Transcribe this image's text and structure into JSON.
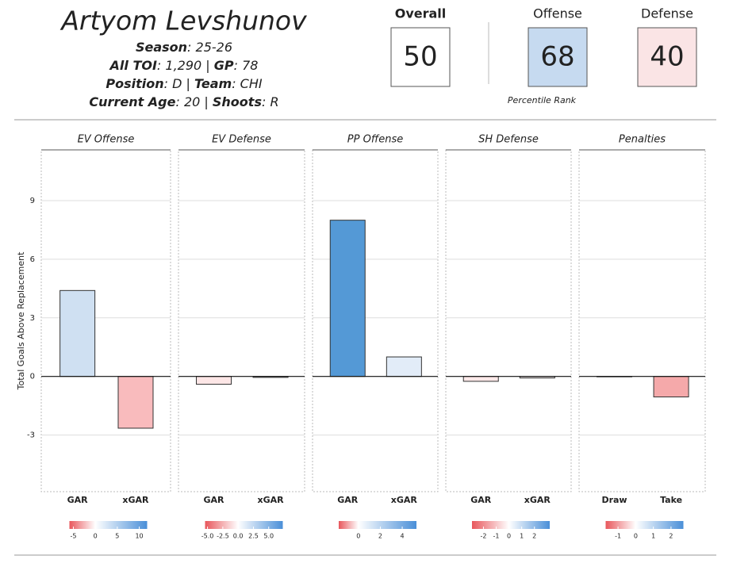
{
  "header": {
    "name": "Artyom Levshunov",
    "lines": [
      [
        {
          "label": "Season",
          "value": ": 25-26"
        }
      ],
      [
        {
          "label": "All TOI",
          "value": ": 1,290 | "
        },
        {
          "label": "GP",
          "value": ": 78"
        }
      ],
      [
        {
          "label": "Position",
          "value": ": D | "
        },
        {
          "label": "Team",
          "value": ": CHI"
        }
      ],
      [
        {
          "label": "Current Age",
          "value": ": 20 | "
        },
        {
          "label": "Shoots",
          "value": ": R"
        }
      ]
    ]
  },
  "scores": [
    {
      "label": "Overall",
      "value": 50,
      "color": "#ffffff"
    },
    {
      "label": "Offense",
      "value": 68,
      "color": "#c6daf0"
    },
    {
      "label": "Defense",
      "value": 40,
      "color": "#fae4e5"
    }
  ],
  "score_note": "Percentile Rank",
  "chart_data": {
    "type": "bar",
    "ylabel": "Total Goals Above Replacement",
    "ylim": [
      -5.9,
      11.6
    ],
    "yticks": [
      -3,
      0,
      3,
      6,
      9
    ],
    "grid": true,
    "panels": [
      {
        "title": "EV Offense",
        "categories": [
          "GAR",
          "xGAR"
        ],
        "values": [
          4.4,
          -2.65
        ],
        "colors": [
          "#cfe0f2",
          "#f9bbbd"
        ],
        "scale": {
          "lim": [
            -5.9,
            11.8
          ],
          "ticks": [
            -5,
            0,
            5,
            10
          ]
        }
      },
      {
        "title": "EV Defense",
        "categories": [
          "GAR",
          "xGAR"
        ],
        "values": [
          -0.4,
          -0.05
        ],
        "colors": [
          "#fde6e6",
          "#fefafa"
        ],
        "scale": {
          "lim": [
            -5.4,
            7.3
          ],
          "ticks": [
            {
              "value": -5,
              "label": "-5.0"
            },
            {
              "value": -2.5,
              "label": "-2.5"
            },
            {
              "value": 0,
              "label": "0.0"
            },
            {
              "value": 2.5,
              "label": "2.5"
            },
            {
              "value": 5,
              "label": "5.0"
            }
          ]
        }
      },
      {
        "title": "PP Offense",
        "categories": [
          "GAR",
          "xGAR"
        ],
        "values": [
          8.0,
          1.0
        ],
        "colors": [
          "#5499d6",
          "#e2ecf8"
        ],
        "scale": {
          "lim": [
            -1.8,
            5.3
          ],
          "ticks": [
            0,
            2,
            4
          ]
        }
      },
      {
        "title": "SH Defense",
        "categories": [
          "GAR",
          "xGAR"
        ],
        "values": [
          -0.25,
          -0.08
        ],
        "colors": [
          "#fde9e9",
          "#fdf5f5"
        ],
        "scale": {
          "lim": [
            -2.9,
            3.2
          ],
          "ticks": [
            -2,
            -1,
            0,
            1,
            2
          ]
        }
      },
      {
        "title": "Penalties",
        "categories": [
          "Draw",
          "Take"
        ],
        "values": [
          0,
          -1.05
        ],
        "colors": [
          "#ffffff",
          "#f5a9aa"
        ],
        "scale": {
          "lim": [
            -1.7,
            2.7
          ],
          "ticks": [
            -1,
            0,
            1,
            2
          ]
        }
      }
    ]
  }
}
